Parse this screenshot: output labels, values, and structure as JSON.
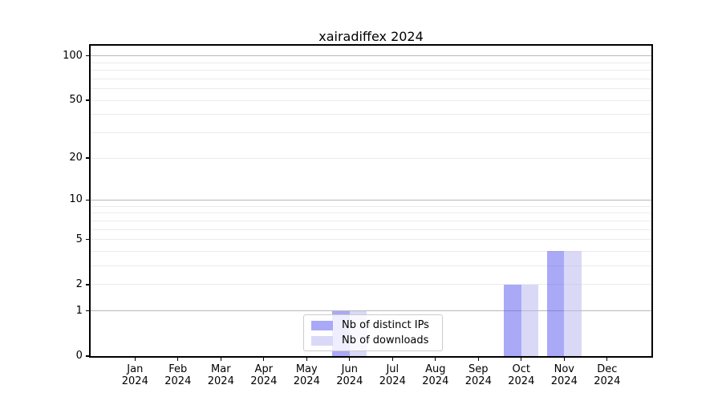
{
  "chart_data": {
    "type": "bar",
    "title": "xairadiffex 2024",
    "x_axis": {
      "months": [
        "Jan",
        "Feb",
        "Mar",
        "Apr",
        "May",
        "Jun",
        "Jul",
        "Aug",
        "Sep",
        "Oct",
        "Nov",
        "Dec"
      ],
      "year": "2024"
    },
    "y_axis": {
      "scale": "log1p",
      "tick_labels": [
        "0",
        "1",
        "2",
        "5",
        "10",
        "20",
        "50",
        "100"
      ],
      "tick_values": [
        0,
        1,
        2,
        5,
        10,
        20,
        50,
        100
      ],
      "major_grid_values": [
        1,
        10,
        100
      ],
      "minor_grid_values": [
        2,
        3,
        4,
        5,
        6,
        7,
        8,
        9,
        20,
        30,
        40,
        50,
        60,
        70,
        80,
        90
      ],
      "range": [
        0,
        117
      ],
      "major_grid_color": "#b8b8b8",
      "minor_grid_color": "#ebebeb"
    },
    "series": [
      {
        "name": "Nb of distinct IPs",
        "key": "distinct-ips",
        "color": "rgba(83,83,239,0.5)",
        "legend_color": "#a9a9f7",
        "values": [
          0,
          0,
          0,
          0,
          0,
          1,
          0,
          0,
          0,
          2,
          4,
          0
        ]
      },
      {
        "name": "Nb of downloads",
        "key": "downloads",
        "color": "rgba(179,179,239,0.5)",
        "legend_color": "#d9d9f7",
        "values": [
          0,
          0,
          0,
          0,
          0,
          1,
          0,
          0,
          0,
          2,
          4,
          0
        ]
      }
    ],
    "legend": {
      "position": "lower center",
      "entries": [
        "Nb of distinct IPs",
        "Nb of downloads"
      ]
    },
    "grid": true
  }
}
